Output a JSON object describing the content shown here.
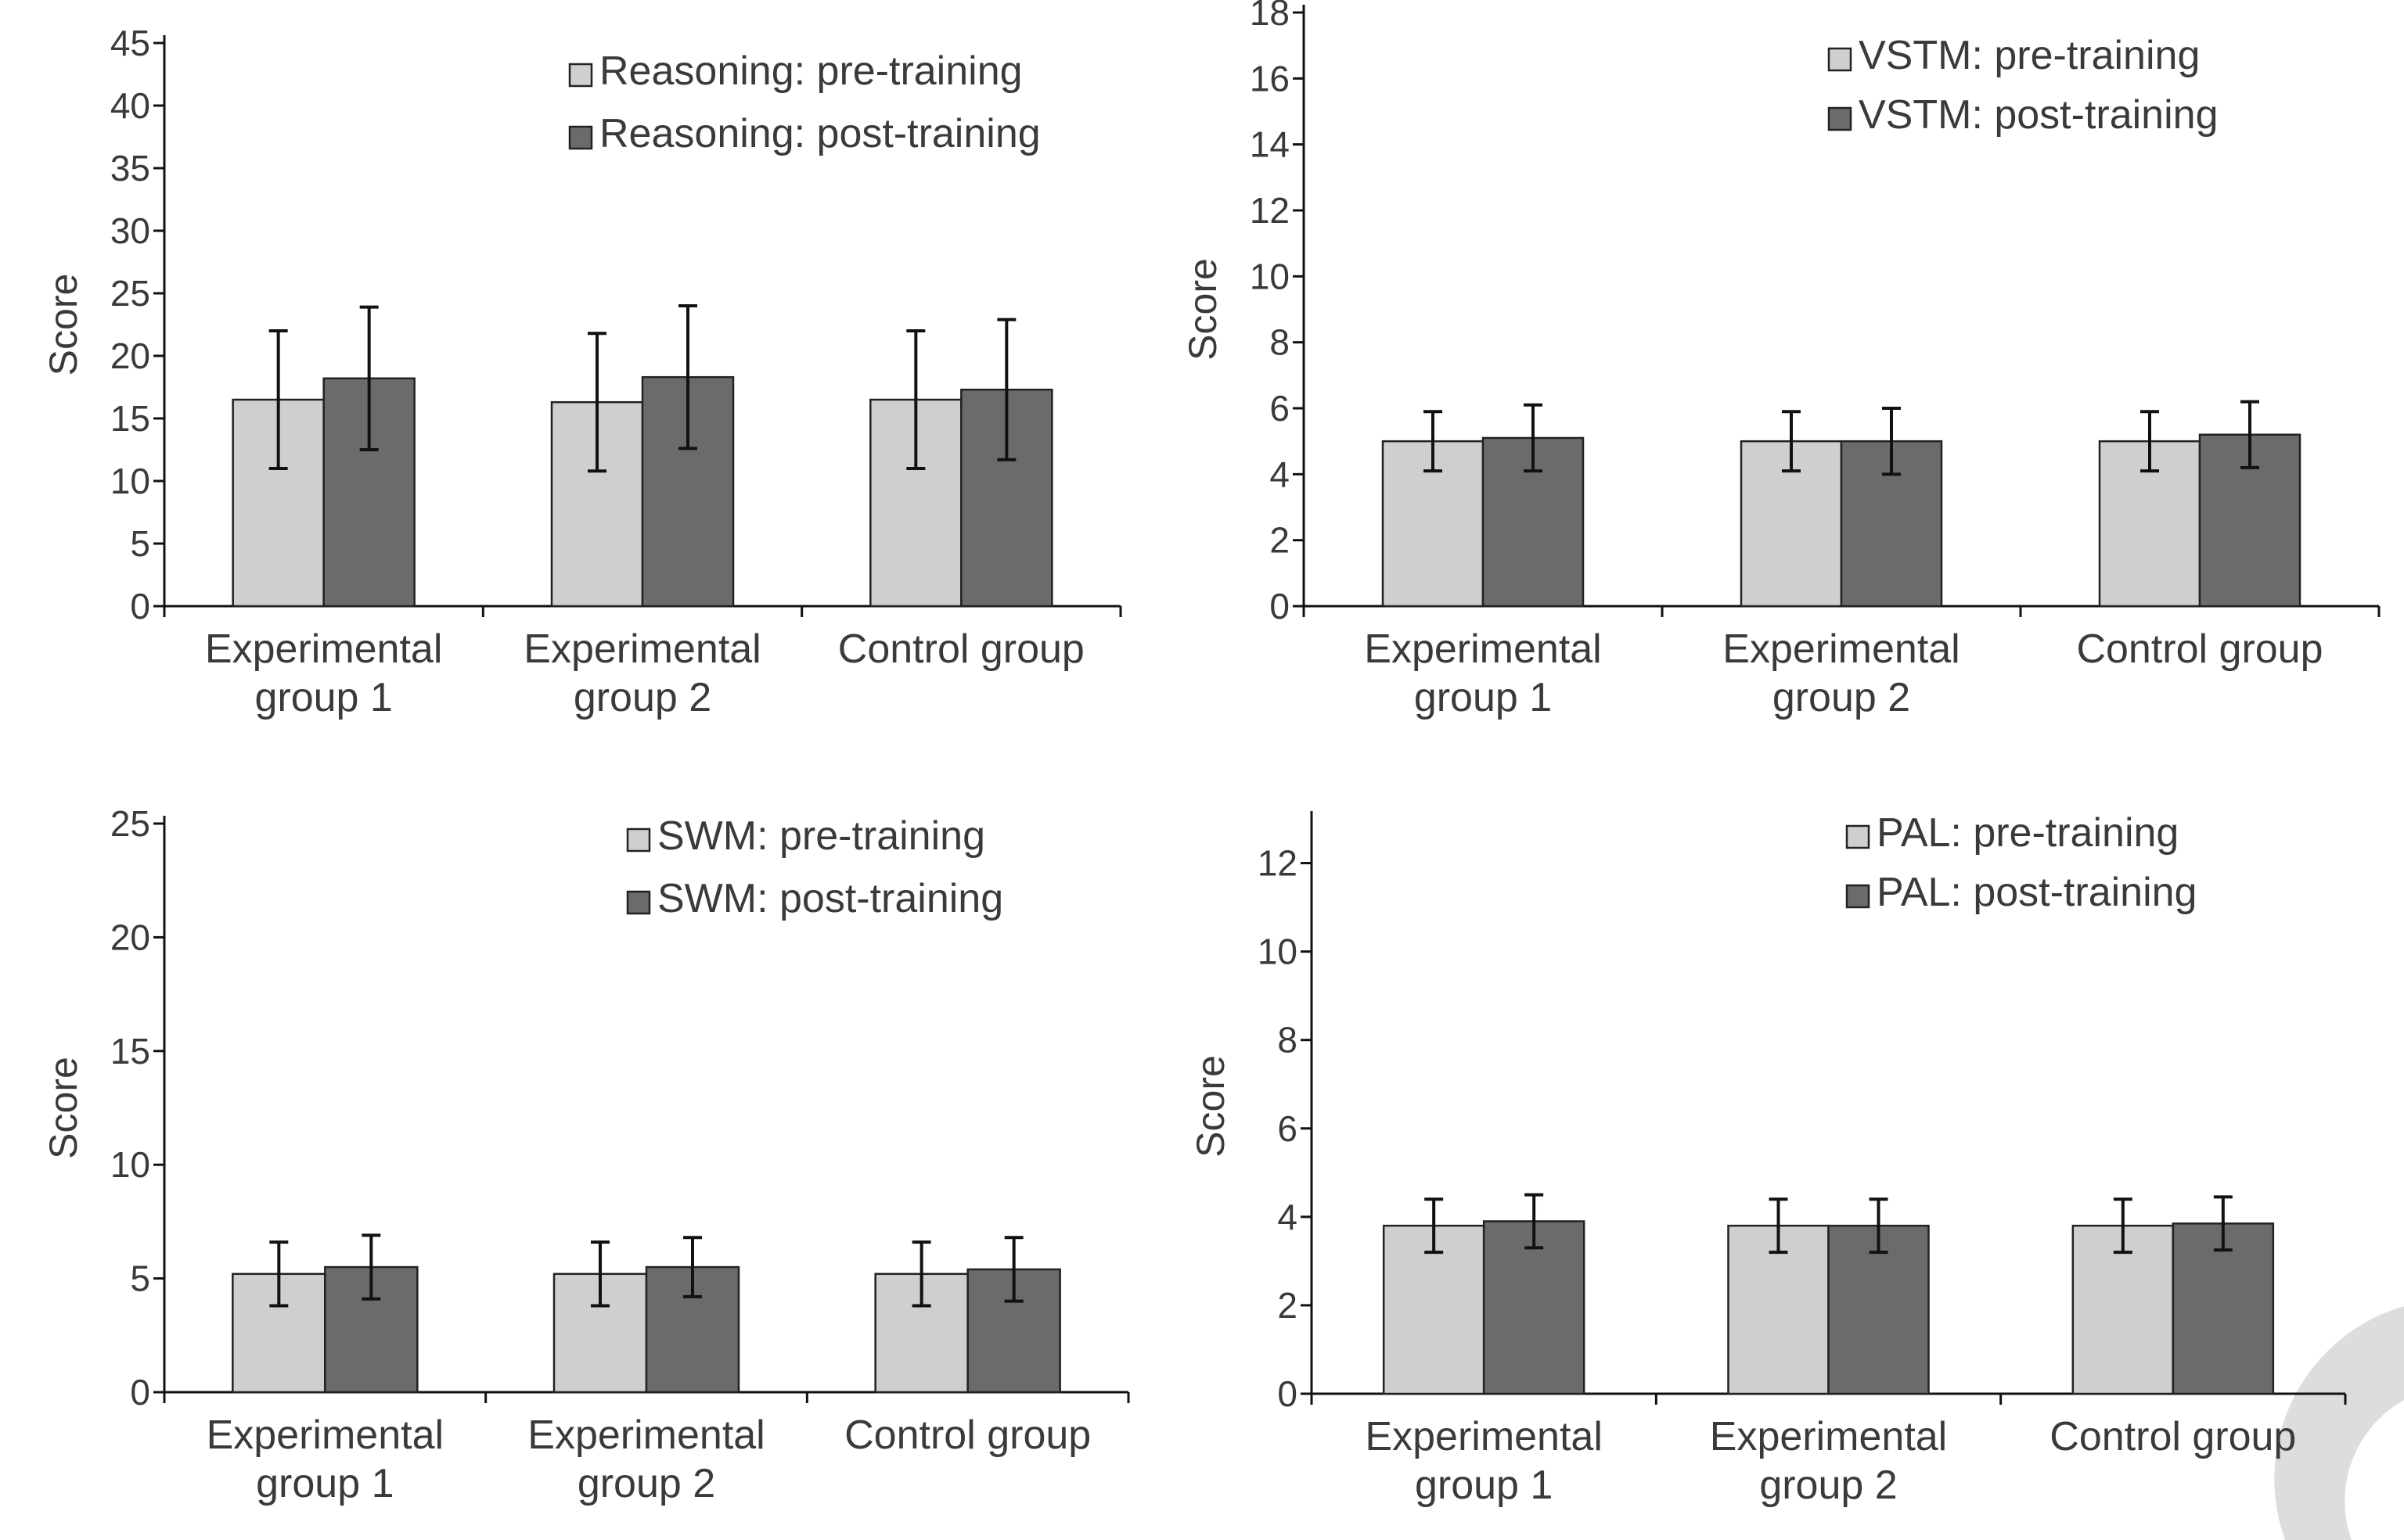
{
  "colors": {
    "pre": "#cfcfcf",
    "post": "#6b6b6b",
    "decor_ring": "#dddddd"
  },
  "chart_data": [
    {
      "type": "bar",
      "title": "",
      "xlabel": "",
      "ylabel": "Score",
      "ylim": [
        0,
        45
      ],
      "yticks": [
        0,
        5,
        10,
        15,
        20,
        25,
        30,
        35,
        40,
        45
      ],
      "categories": [
        [
          "Experimental",
          "group 1"
        ],
        [
          "Experimental",
          "group 2"
        ],
        [
          "Control group"
        ]
      ],
      "legend_position": "top-right",
      "series": [
        {
          "name": "Reasoning: pre-training",
          "values": [
            16.5,
            16.3,
            16.5
          ],
          "errors": [
            5.5,
            5.5,
            5.5
          ]
        },
        {
          "name": "Reasoning: post-training",
          "values": [
            18.2,
            18.3,
            17.3
          ],
          "errors": [
            5.7,
            5.7,
            5.6
          ]
        }
      ]
    },
    {
      "type": "bar",
      "title": "",
      "xlabel": "",
      "ylabel": "Score",
      "ylim": [
        0,
        18
      ],
      "yticks": [
        0,
        2,
        4,
        6,
        8,
        10,
        12,
        14,
        16,
        18
      ],
      "categories": [
        [
          "Experimental",
          "group 1"
        ],
        [
          "Experimental",
          "group 2"
        ],
        [
          "Control group"
        ]
      ],
      "legend_position": "top-right",
      "series": [
        {
          "name": "VSTM: pre-training",
          "values": [
            5.0,
            5.0,
            5.0
          ],
          "errors": [
            0.9,
            0.9,
            0.9
          ]
        },
        {
          "name": "VSTM: post-training",
          "values": [
            5.1,
            5.0,
            5.2
          ],
          "errors": [
            1.0,
            1.0,
            1.0
          ]
        }
      ]
    },
    {
      "type": "bar",
      "title": "",
      "xlabel": "",
      "ylabel": "Score",
      "ylim": [
        0,
        25
      ],
      "yticks": [
        0,
        5,
        10,
        15,
        20,
        25
      ],
      "categories": [
        [
          "Experimental",
          "group 1"
        ],
        [
          "Experimental",
          "group 2"
        ],
        [
          "Control group"
        ]
      ],
      "legend_position": "top-right",
      "series": [
        {
          "name": "SWM: pre-training",
          "values": [
            5.2,
            5.2,
            5.2
          ],
          "errors": [
            1.4,
            1.4,
            1.4
          ]
        },
        {
          "name": "SWM: post-training",
          "values": [
            5.5,
            5.5,
            5.4
          ],
          "errors": [
            1.4,
            1.3,
            1.4
          ]
        }
      ]
    },
    {
      "type": "bar",
      "title": "",
      "xlabel": "",
      "ylabel": "Score",
      "ylim": [
        0,
        13
      ],
      "yticks": [
        0,
        2,
        4,
        6,
        8,
        10,
        12
      ],
      "categories": [
        [
          "Experimental",
          "group 1"
        ],
        [
          "Experimental",
          "group 2"
        ],
        [
          "Control group"
        ]
      ],
      "legend_position": "top-right",
      "series": [
        {
          "name": "PAL: pre-training",
          "values": [
            3.8,
            3.8,
            3.8
          ],
          "errors": [
            0.6,
            0.6,
            0.6
          ]
        },
        {
          "name": "PAL: post-training",
          "values": [
            3.9,
            3.8,
            3.85
          ],
          "errors": [
            0.6,
            0.6,
            0.6
          ]
        }
      ]
    }
  ]
}
